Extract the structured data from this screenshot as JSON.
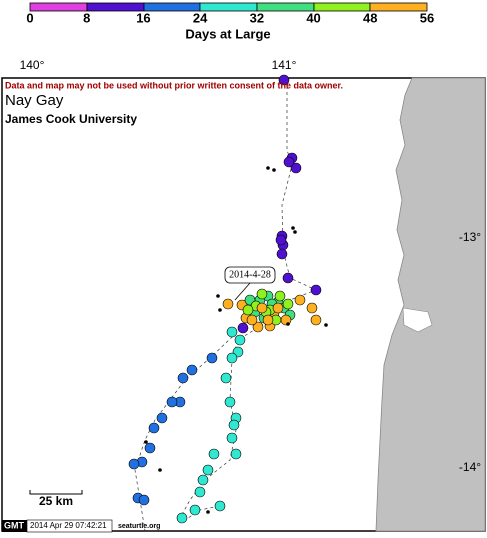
{
  "colorbar": {
    "ticks": [
      "0",
      "8",
      "16",
      "24",
      "32",
      "40",
      "48",
      "56"
    ],
    "title": "Days at Large"
  },
  "axes": {
    "lon": [
      "140°",
      "141°"
    ],
    "lat": [
      "-13°",
      "-14°"
    ]
  },
  "notice": "Data and map may not be used without prior written consent of the data owner.",
  "title": "Nay Gay",
  "subtitle": "James Cook University",
  "annotation": "2014-4-28",
  "scale": "25 km",
  "footer": {
    "gmt": "GMT",
    "timestamp": "2014 Apr 29 07:42:21",
    "credit": "seaturtle.org"
  }
}
